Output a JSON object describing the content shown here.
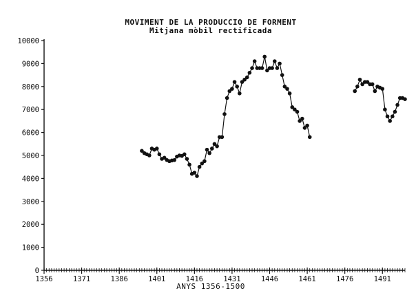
{
  "chart_data": {
    "type": "line",
    "title": "MOVIMENT DE LA PRODUCCIO DE FORMENT",
    "subtitle": "Mitjana mòbil rectificada",
    "xlabel": "ANYS 1356-1500",
    "ylabel": "",
    "xlim": [
      1356,
      1500
    ],
    "ylim": [
      0,
      10000
    ],
    "x_ticks": [
      1356,
      1371,
      1386,
      1401,
      1416,
      1431,
      1446,
      1461,
      1476,
      1491
    ],
    "y_ticks": [
      0,
      1000,
      2000,
      3000,
      4000,
      5000,
      6000,
      7000,
      8000,
      9000,
      10000
    ],
    "grid": false,
    "markers": true,
    "segments": [
      {
        "x": [
          1395,
          1396,
          1397,
          1398,
          1399,
          1400,
          1401,
          1402,
          1403,
          1404,
          1405,
          1406,
          1407,
          1408,
          1409,
          1410,
          1411,
          1412,
          1413,
          1414,
          1415,
          1416,
          1417,
          1418,
          1419,
          1420,
          1421,
          1422,
          1423,
          1424,
          1425,
          1426,
          1427,
          1428,
          1429,
          1430,
          1431,
          1432,
          1433,
          1434,
          1435,
          1436,
          1437,
          1438,
          1439,
          1440,
          1441,
          1442,
          1443,
          1444,
          1445,
          1446,
          1447,
          1448,
          1449,
          1450,
          1451,
          1452,
          1453,
          1454,
          1455,
          1456,
          1457,
          1458,
          1459,
          1460,
          1461,
          1462
        ],
        "y": [
          5200,
          5100,
          5050,
          5000,
          5300,
          5250,
          5300,
          5050,
          4850,
          4900,
          4800,
          4750,
          4780,
          4800,
          4950,
          5000,
          4980,
          5050,
          4850,
          4600,
          4200,
          4250,
          4100,
          4500,
          4650,
          4750,
          5250,
          5100,
          5300,
          5500,
          5400,
          5800,
          5800,
          6800,
          7500,
          7800,
          7900,
          8200,
          8000,
          7700,
          8200,
          8300,
          8400,
          8600,
          8800,
          9100,
          8800,
          8800,
          8800,
          9300,
          8700,
          8800,
          8800,
          9100,
          8800,
          9000,
          8500,
          8000,
          7900,
          7700,
          7100,
          7000,
          6900,
          6500,
          6600,
          6200,
          6300,
          5800
        ]
      },
      {
        "x": [
          1480,
          1481,
          1482,
          1483,
          1484,
          1485,
          1486,
          1487,
          1488,
          1489,
          1490,
          1491,
          1492,
          1493,
          1494,
          1495,
          1496,
          1497,
          1498,
          1499,
          1500
        ],
        "y": [
          7800,
          8000,
          8300,
          8100,
          8200,
          8200,
          8100,
          8100,
          7800,
          8000,
          7950,
          7900,
          7000,
          6700,
          6500,
          6700,
          6900,
          7200,
          7500,
          7500,
          7450
        ]
      }
    ]
  }
}
